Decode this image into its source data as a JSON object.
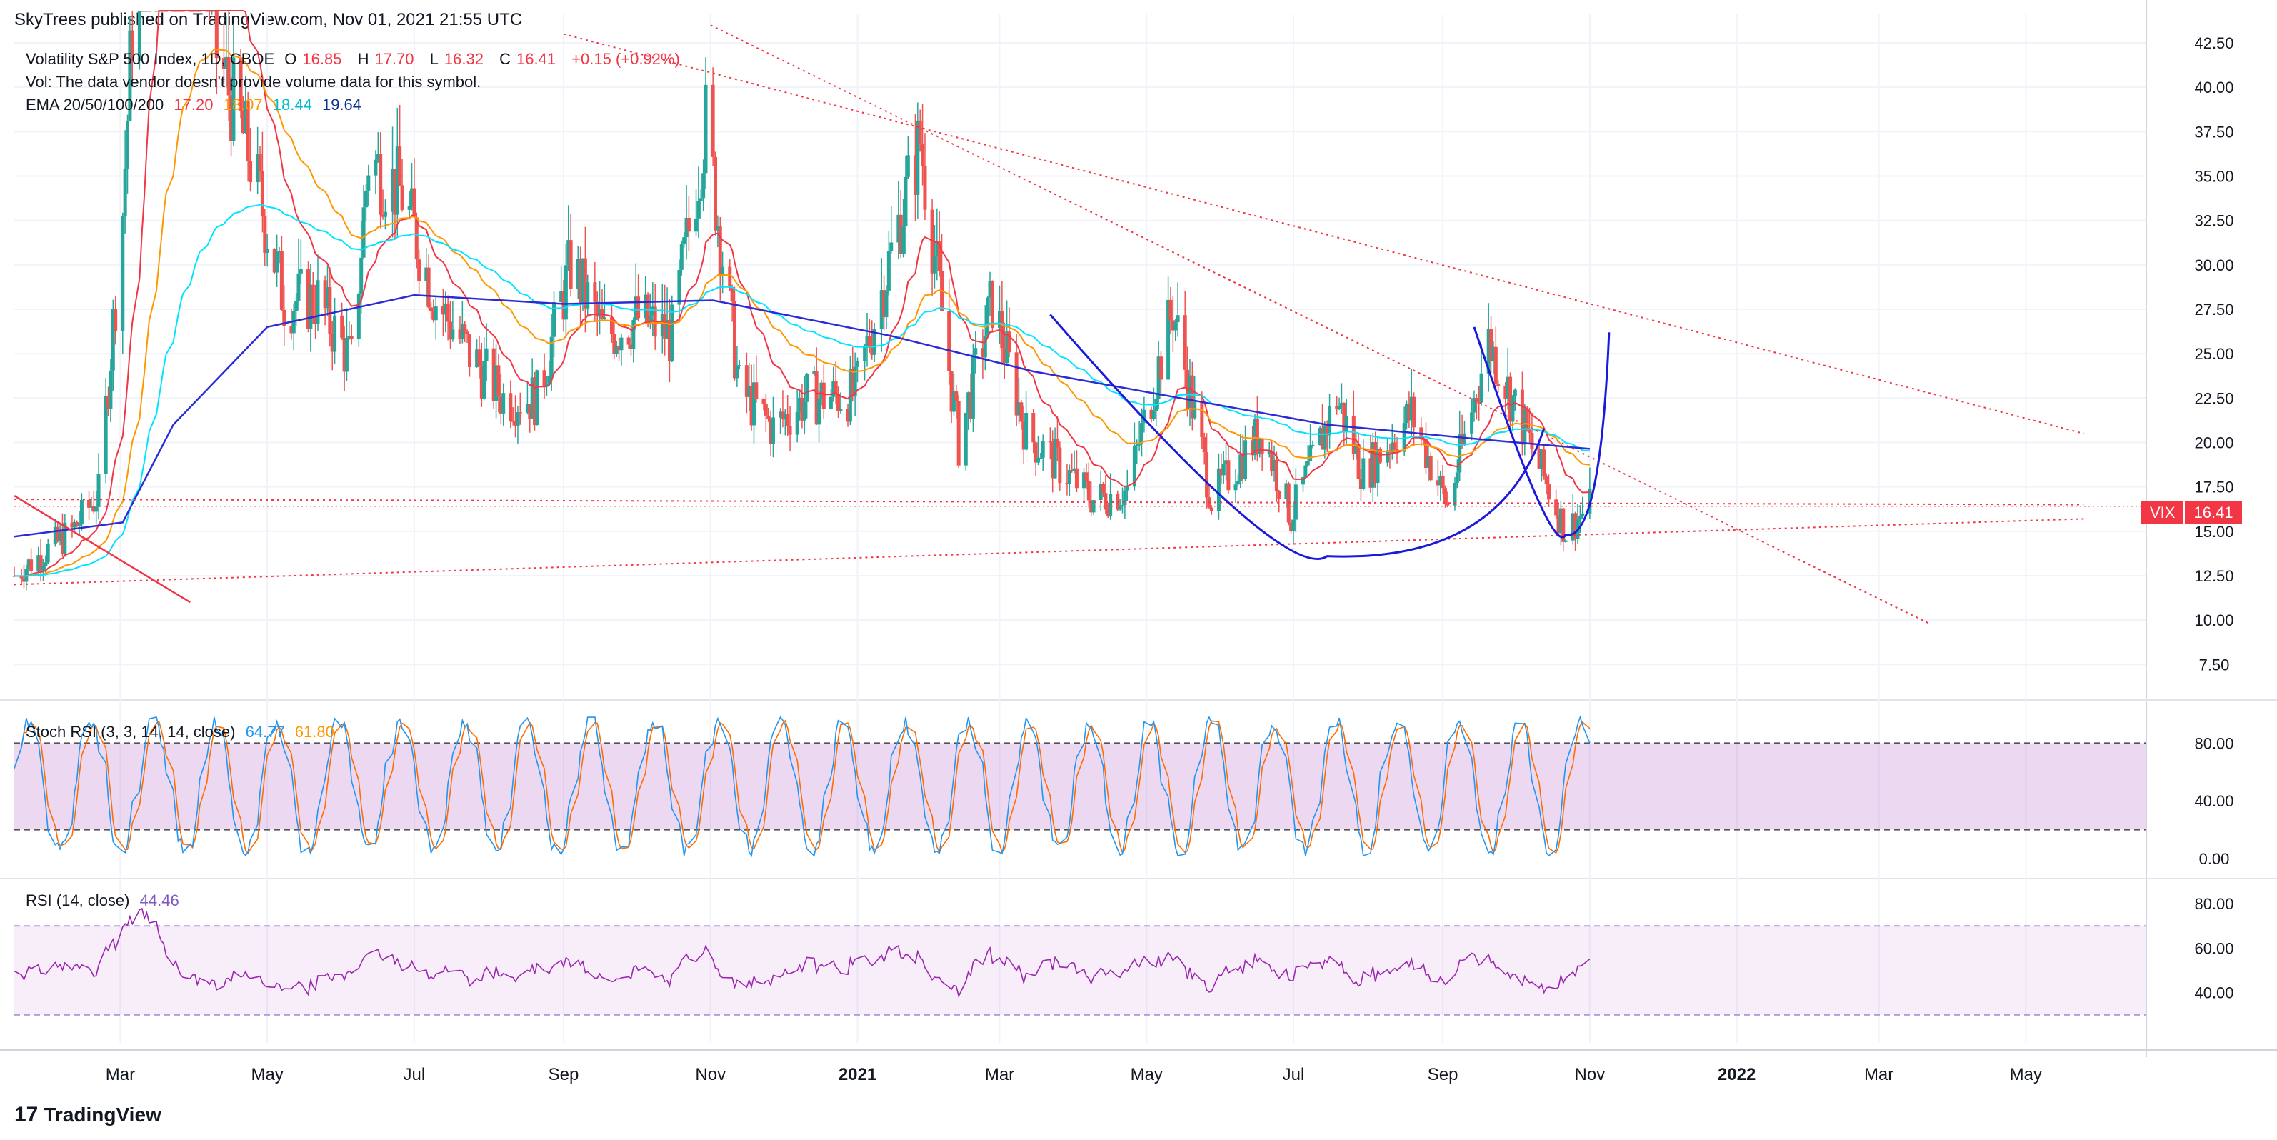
{
  "header": {
    "publisher": "SkyTrees published on TradingView.com, Nov 01, 2021 21:55 UTC"
  },
  "legend_main": {
    "symbol": "Volatility S&P 500 Index, 1D, CBOE",
    "o_label": "O",
    "o_value": "16.85",
    "h_label": "H",
    "h_value": "17.70",
    "l_label": "L",
    "l_value": "16.32",
    "c_label": "C",
    "c_value": "16.41",
    "change": "+0.15 (+0.92%)",
    "vol_note": "Vol: The data vendor doesn't provide volume data for this symbol.",
    "ema_label": "EMA 20/50/100/200",
    "ema20": "17.20",
    "ema50": "18.07",
    "ema100": "18.44",
    "ema200": "19.64"
  },
  "legend_stoch": {
    "label": "Stoch RSI (3, 3, 14, 14, close)",
    "k": "64.77",
    "d": "61.80"
  },
  "legend_rsi": {
    "label": "RSI (14, close)",
    "value": "44.46"
  },
  "price_tag": {
    "symbol": "VIX",
    "value": "16.41"
  },
  "brand": {
    "logo": "17",
    "name": "TradingView"
  },
  "colors": {
    "up": "#26a69a",
    "down": "#ef5350",
    "ema20": "#f23645",
    "ema50": "#ff9800",
    "ema100": "#00e5ff",
    "ema200": "#2c2cd6",
    "stoch_k": "#2196f3",
    "stoch_d": "#ff6d00",
    "rsi": "#9c27b0",
    "trend": "#f23645",
    "pattern": "#1a1adb"
  },
  "chart_data": {
    "type": "candlestick",
    "y_ticks": [
      "42.50",
      "40.00",
      "37.50",
      "35.00",
      "32.50",
      "30.00",
      "27.50",
      "25.00",
      "22.50",
      "20.00",
      "17.50",
      "15.00",
      "12.50",
      "10.00",
      "7.50"
    ],
    "x_ticks": [
      "Mar",
      "May",
      "Jul",
      "Sep",
      "Nov",
      "2021",
      "Mar",
      "May",
      "Jul",
      "Sep",
      "Nov",
      "2022",
      "Mar",
      "May"
    ],
    "stoch_ticks": [
      "80.00",
      "40.00",
      "0.00"
    ],
    "rsi_ticks": [
      "80.00",
      "60.00",
      "40.00"
    ],
    "ylim": [
      5.5,
      42.5
    ],
    "last_close": 16.41,
    "bands": {
      "stoch_upper": 80,
      "stoch_lower": 20,
      "rsi_upper": 70,
      "rsi_lower": 30
    },
    "price_path": [
      [
        "2020-01-17",
        12.5
      ],
      [
        "2020-02-10",
        15.0
      ],
      [
        "2020-02-21",
        17.1
      ],
      [
        "2020-03-02",
        33
      ],
      [
        "2020-03-16",
        70
      ],
      [
        "2020-03-27",
        60
      ],
      [
        "2020-04-10",
        42
      ],
      [
        "2020-04-24",
        36
      ],
      [
        "2020-05-08",
        28
      ],
      [
        "2020-05-22",
        28
      ],
      [
        "2020-06-05",
        24.5
      ],
      [
        "2020-06-12",
        36
      ],
      [
        "2020-06-26",
        34
      ],
      [
        "2020-07-10",
        28
      ],
      [
        "2020-07-24",
        25
      ],
      [
        "2020-08-07",
        22.5
      ],
      [
        "2020-08-21",
        22.5
      ],
      [
        "2020-09-04",
        30
      ],
      [
        "2020-09-18",
        26
      ],
      [
        "2020-10-02",
        27
      ],
      [
        "2020-10-16",
        26
      ],
      [
        "2020-10-30",
        38
      ],
      [
        "2020-11-13",
        23
      ],
      [
        "2020-11-27",
        20.8
      ],
      [
        "2020-12-11",
        22.5
      ],
      [
        "2020-12-31",
        22.7
      ],
      [
        "2021-01-27",
        37
      ],
      [
        "2021-02-12",
        19.9
      ],
      [
        "2021-02-26",
        28
      ],
      [
        "2021-03-12",
        20.5
      ],
      [
        "2021-04-09",
        16.8
      ],
      [
        "2021-04-23",
        17.3
      ],
      [
        "2021-05-12",
        27.5
      ],
      [
        "2021-05-28",
        16.8
      ],
      [
        "2021-06-18",
        20.7
      ],
      [
        "2021-06-30",
        15.8
      ],
      [
        "2021-07-19",
        22.5
      ],
      [
        "2021-07-30",
        18.2
      ],
      [
        "2021-08-19",
        21.6
      ],
      [
        "2021-09-03",
        16.4
      ],
      [
        "2021-09-20",
        25.7
      ],
      [
        "2021-10-04",
        21.0
      ],
      [
        "2021-10-22",
        15.0
      ],
      [
        "2021-11-01",
        16.41
      ]
    ],
    "ema200_path": [
      [
        "2020-01-17",
        14.7
      ],
      [
        "2020-03-02",
        15.5
      ],
      [
        "2020-03-23",
        21
      ],
      [
        "2020-05-01",
        26.5
      ],
      [
        "2020-07-01",
        28.3
      ],
      [
        "2020-09-01",
        27.8
      ],
      [
        "2020-11-02",
        28.0
      ],
      [
        "2021-01-15",
        26.0
      ],
      [
        "2021-03-15",
        24.0
      ],
      [
        "2021-05-15",
        22.5
      ],
      [
        "2021-07-15",
        21.0
      ],
      [
        "2021-09-15",
        20.2
      ],
      [
        "2021-11-01",
        19.64
      ]
    ],
    "trendlines": [
      {
        "from": [
          "2020-01-17",
          17.0
        ],
        "to": [
          "2020-03-30",
          11.0
        ],
        "style": "solid"
      },
      {
        "from": [
          "2020-01-17",
          16.8
        ],
        "to": [
          "2022-05-25",
          16.5
        ],
        "style": "dotted"
      },
      {
        "from": [
          "2020-01-17",
          12.0
        ],
        "to": [
          "2022-05-25",
          15.7
        ],
        "style": "dotted"
      },
      {
        "from": [
          "2020-09-01",
          43.0
        ],
        "to": [
          "2022-05-25",
          20.5
        ],
        "style": "dotted"
      },
      {
        "from": [
          "2020-11-01",
          43.5
        ],
        "to": [
          "2022-03-22",
          9.8
        ],
        "style": "dotted"
      }
    ],
    "patterns": [
      {
        "kind": "cup",
        "from": [
          "2021-03-22",
          27.2
        ],
        "bottom": [
          "2021-07-15",
          13.6
        ],
        "to": [
          "2021-10-13",
          20.8
        ]
      },
      {
        "kind": "handle",
        "from": [
          "2021-09-14",
          26.5
        ],
        "bottom": [
          "2021-10-22",
          14.8
        ],
        "to": [
          "2021-11-09",
          26.2
        ]
      }
    ]
  }
}
